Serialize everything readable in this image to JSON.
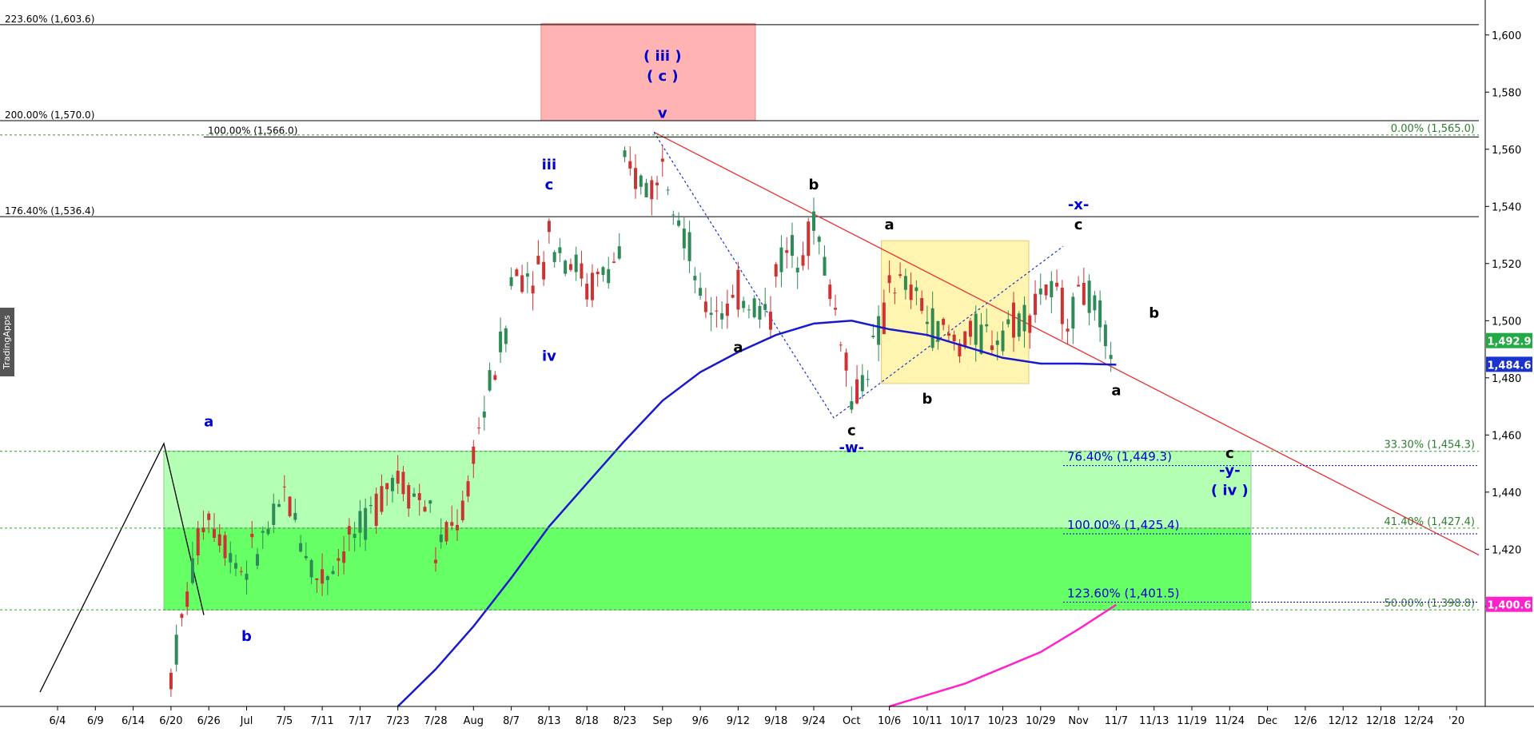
{
  "brand": {
    "label": "TradingApps"
  },
  "chart_data": {
    "type": "candlestick",
    "y_axis": {
      "min": 1365,
      "max": 1610,
      "position": "right",
      "ticks": [
        1400,
        1420,
        1440,
        1460,
        1480,
        1500,
        1520,
        1540,
        1560,
        1580,
        1600
      ],
      "tick_labels": [
        "1,400",
        "1,420",
        "1,440",
        "1,460",
        "1,480",
        "1,500",
        "1,520",
        "1,540",
        "1,560",
        "1,580",
        "1,600"
      ]
    },
    "x_axis": {
      "ticks": [
        "6/4",
        "6/9",
        "6/14",
        "6/20",
        "6/26",
        "Jul",
        "7/5",
        "7/11",
        "7/17",
        "7/23",
        "7/28",
        "Aug",
        "8/7",
        "8/13",
        "8/18",
        "8/23",
        "Sep",
        "9/6",
        "9/12",
        "9/18",
        "9/24",
        "Oct",
        "10/6",
        "10/11",
        "10/17",
        "10/23",
        "10/29",
        "Nov",
        "11/7",
        "11/13",
        "11/19",
        "11/24",
        "Dec",
        "12/6",
        "12/12",
        "12/18",
        "12/24",
        "'20"
      ]
    },
    "price_anchors": [
      {
        "d": "6/20",
        "o": 1373,
        "h": 1380,
        "l": 1373,
        "c": 1376
      },
      {
        "d": "6/26",
        "o": 1440,
        "h": 1458,
        "l": 1425,
        "c": 1432
      },
      {
        "d": "Jul",
        "o": 1410,
        "h": 1425,
        "l": 1400,
        "c": 1415
      },
      {
        "d": "7/5",
        "o": 1435,
        "h": 1452,
        "l": 1425,
        "c": 1440
      },
      {
        "d": "7/11",
        "o": 1405,
        "h": 1418,
        "l": 1400,
        "c": 1410
      },
      {
        "d": "7/17",
        "o": 1428,
        "h": 1438,
        "l": 1418,
        "c": 1425
      },
      {
        "d": "7/23",
        "o": 1450,
        "h": 1468,
        "l": 1440,
        "c": 1445
      },
      {
        "d": "7/28",
        "o": 1432,
        "h": 1442,
        "l": 1412,
        "c": 1418
      },
      {
        "d": "Aug",
        "o": 1440,
        "h": 1462,
        "l": 1430,
        "c": 1455
      },
      {
        "d": "8/7",
        "o": 1505,
        "h": 1525,
        "l": 1495,
        "c": 1515
      },
      {
        "d": "8/13",
        "o": 1520,
        "h": 1545,
        "l": 1490,
        "c": 1530
      },
      {
        "d": "8/18",
        "o": 1515,
        "h": 1530,
        "l": 1505,
        "c": 1510
      },
      {
        "d": "8/23",
        "o": 1525,
        "h": 1563,
        "l": 1518,
        "c": 1552
      },
      {
        "d": "Sep",
        "o": 1545,
        "h": 1566,
        "l": 1530,
        "c": 1560
      },
      {
        "d": "9/6",
        "o": 1510,
        "h": 1530,
        "l": 1495,
        "c": 1505
      },
      {
        "d": "9/12",
        "o": 1505,
        "h": 1520,
        "l": 1495,
        "c": 1510
      },
      {
        "d": "9/18",
        "o": 1500,
        "h": 1525,
        "l": 1492,
        "c": 1520
      },
      {
        "d": "9/24",
        "o": 1530,
        "h": 1543,
        "l": 1520,
        "c": 1535
      },
      {
        "d": "Oct",
        "o": 1480,
        "h": 1495,
        "l": 1466,
        "c": 1470
      },
      {
        "d": "10/6",
        "o": 1505,
        "h": 1525,
        "l": 1495,
        "c": 1515
      },
      {
        "d": "10/11",
        "o": 1505,
        "h": 1522,
        "l": 1490,
        "c": 1500
      },
      {
        "d": "10/17",
        "o": 1490,
        "h": 1500,
        "l": 1480,
        "c": 1495
      },
      {
        "d": "10/23",
        "o": 1495,
        "h": 1505,
        "l": 1485,
        "c": 1498
      },
      {
        "d": "10/29",
        "o": 1505,
        "h": 1521,
        "l": 1495,
        "c": 1512
      },
      {
        "d": "Nov",
        "o": 1500,
        "h": 1519,
        "l": 1488,
        "c": 1515
      },
      {
        "d": "11/7",
        "o": 1487,
        "h": 1496,
        "l": 1481,
        "c": 1492.9
      }
    ],
    "moving_average_blue": [
      {
        "d": "7/23",
        "v": 1365
      },
      {
        "d": "7/28",
        "v": 1378
      },
      {
        "d": "Aug",
        "v": 1393
      },
      {
        "d": "8/7",
        "v": 1410
      },
      {
        "d": "8/13",
        "v": 1428
      },
      {
        "d": "8/18",
        "v": 1443
      },
      {
        "d": "8/23",
        "v": 1458
      },
      {
        "d": "Sep",
        "v": 1472
      },
      {
        "d": "9/6",
        "v": 1482
      },
      {
        "d": "9/12",
        "v": 1489
      },
      {
        "d": "9/18",
        "v": 1495
      },
      {
        "d": "9/24",
        "v": 1499
      },
      {
        "d": "Oct",
        "v": 1500
      },
      {
        "d": "10/6",
        "v": 1497
      },
      {
        "d": "10/11",
        "v": 1495
      },
      {
        "d": "10/17",
        "v": 1491
      },
      {
        "d": "10/23",
        "v": 1487
      },
      {
        "d": "10/29",
        "v": 1485
      },
      {
        "d": "Nov",
        "v": 1485
      },
      {
        "d": "11/7",
        "v": 1484.6
      }
    ],
    "moving_average_magenta": [
      {
        "d": "10/6",
        "v": 1365
      },
      {
        "d": "10/17",
        "v": 1373
      },
      {
        "d": "10/29",
        "v": 1384
      },
      {
        "d": "Nov",
        "v": 1392
      },
      {
        "d": "11/7",
        "v": 1400.6
      }
    ],
    "price_tags": [
      {
        "label": "1,492.9",
        "v": 1492.9,
        "color": "#22aa44"
      },
      {
        "label": "1,484.6",
        "v": 1484.6,
        "color": "#1a33cc"
      },
      {
        "label": "1,400.6",
        "v": 1400.6,
        "color": "#ff22cc"
      }
    ],
    "horizontal_levels": [
      {
        "label": "223.60% (1,603.6)",
        "v": 1603.6,
        "color": "#000",
        "style": "solid"
      },
      {
        "label": "200.00% (1,570.0)",
        "v": 1570.0,
        "color": "#000",
        "style": "solid"
      },
      {
        "label": "176.40% (1,536.4)",
        "v": 1536.4,
        "color": "#000",
        "style": "solid"
      }
    ],
    "fib_green": [
      {
        "label": "0.00% (1,565.0)",
        "v": 1565.0
      },
      {
        "label": "33.30% (1,454.3)",
        "v": 1454.3
      },
      {
        "label": "41.40% (1,427.4)",
        "v": 1427.4
      },
      {
        "label": "50.00% (1,398.8)",
        "v": 1398.8
      }
    ],
    "fib_blue": [
      {
        "label": "76.40% (1,449.3)",
        "v": 1449.3
      },
      {
        "label": "100.00% (1,425.4)",
        "v": 1425.4
      },
      {
        "label": "123.60% (1,401.5)",
        "v": 1401.5
      }
    ],
    "top_fib_label": {
      "label": "100.00% (1,566.0)",
      "v": 1566.0
    },
    "zones": [
      {
        "name": "red-target-zone",
        "x0": "8/13",
        "x1": "9/24",
        "top": 1604,
        "bottom": 1570,
        "color": "#ffb3b3"
      },
      {
        "name": "yellow-consolidation-zone",
        "x0": "10/6",
        "x1": "Nov",
        "top": 1528,
        "bottom": 1478,
        "color": "#fff5b0"
      },
      {
        "name": "light-green-support-zone",
        "x0": "6/26",
        "x1": "11/24",
        "top": 1454.3,
        "bottom": 1398.8,
        "color": "#b3ffb3"
      },
      {
        "name": "green-support-zone",
        "x0": "6/26",
        "x1": "11/24",
        "top": 1427.4,
        "bottom": 1398.8,
        "color": "#66ff66"
      }
    ],
    "wave_labels": [
      {
        "text": "a",
        "d": "6/26",
        "v": 1463,
        "color": "blue"
      },
      {
        "text": "b",
        "d": "Jul",
        "v": 1388,
        "color": "blue"
      },
      {
        "text": "iii",
        "d": "8/13",
        "v": 1553,
        "color": "blue"
      },
      {
        "text": "c",
        "d": "8/13",
        "v": 1546,
        "color": "blue"
      },
      {
        "text": "iv",
        "d": "8/13",
        "v": 1486,
        "color": "blue"
      },
      {
        "text": "( iii )",
        "d": "Sep",
        "v": 1591,
        "color": "blue"
      },
      {
        "text": "( c )",
        "d": "Sep",
        "v": 1584,
        "color": "blue"
      },
      {
        "text": "v",
        "d": "Sep",
        "v": 1571,
        "color": "blue"
      },
      {
        "text": "a",
        "d": "9/12",
        "v": 1489,
        "color": "black"
      },
      {
        "text": "b",
        "d": "9/24",
        "v": 1546,
        "color": "black"
      },
      {
        "text": "c",
        "d": "Oct",
        "v": 1460,
        "color": "black"
      },
      {
        "text": "-w-",
        "d": "Oct",
        "v": 1454,
        "color": "blue"
      },
      {
        "text": "a",
        "d": "10/6",
        "v": 1532,
        "color": "black"
      },
      {
        "text": "b",
        "d": "10/11",
        "v": 1471,
        "color": "black"
      },
      {
        "text": "-x-",
        "d": "Nov",
        "v": 1539,
        "color": "blue"
      },
      {
        "text": "c",
        "d": "Nov",
        "v": 1532,
        "color": "black"
      },
      {
        "text": "b",
        "d": "11/13",
        "v": 1501,
        "color": "black"
      },
      {
        "text": "a",
        "d": "11/7",
        "v": 1474,
        "color": "black"
      },
      {
        "text": "c",
        "d": "11/24",
        "v": 1452,
        "color": "black"
      },
      {
        "text": "-y-",
        "d": "11/24",
        "v": 1446,
        "color": "blue"
      },
      {
        "text": "( iv )",
        "d": "11/24",
        "v": 1439,
        "color": "blue"
      }
    ]
  }
}
